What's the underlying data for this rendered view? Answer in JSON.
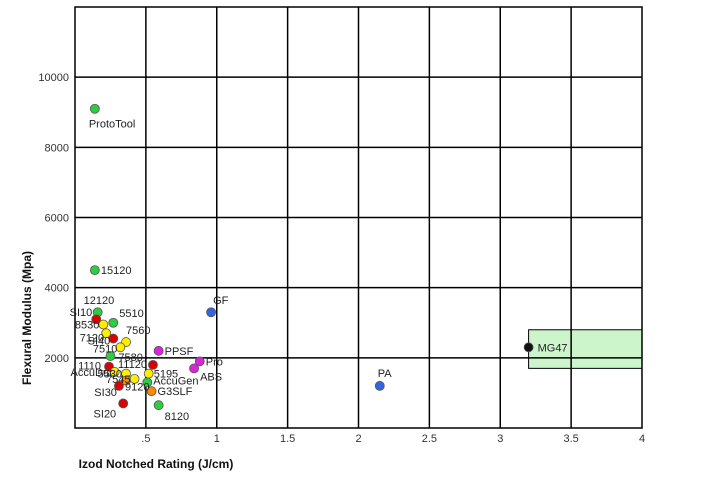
{
  "chart_data": {
    "type": "scatter",
    "title": "",
    "xlabel": "Izod Notched Rating (J/cm)",
    "ylabel": "Flexural Modulus (Mpa)",
    "xlim": [
      0,
      4
    ],
    "ylim": [
      0,
      12000
    ],
    "x_tick_values": [
      0.5,
      1,
      1.5,
      2,
      2.5,
      3,
      3.5,
      4
    ],
    "x_tick_labels": [
      ".5",
      "1",
      "1.5",
      "2",
      "2.5",
      "3",
      "3.5",
      "4"
    ],
    "y_tick_values": [
      2000,
      4000,
      6000,
      8000,
      10000
    ],
    "y_tick_labels": [
      "2000",
      "4000",
      "6000",
      "8000",
      "10000"
    ],
    "grid": true,
    "highlight_region": {
      "x": [
        3.2,
        4.0
      ],
      "y": [
        1700,
        2800
      ],
      "color": "#ccf5cc"
    },
    "points": [
      {
        "label": "ProtoTool",
        "x": 0.14,
        "y": 9100,
        "color": "#2ecc40"
      },
      {
        "label": "15120",
        "x": 0.14,
        "y": 4500,
        "color": "#2ecc40"
      },
      {
        "label": "12120",
        "x": 0.16,
        "y": 3300,
        "color": "#2ecc40"
      },
      {
        "label": "SI10",
        "x": 0.15,
        "y": 3100,
        "color": "#dd0000"
      },
      {
        "label": "8530",
        "x": 0.2,
        "y": 2950,
        "color": "#ffee00"
      },
      {
        "label": "5510",
        "x": 0.27,
        "y": 3000,
        "color": "#2ecc40"
      },
      {
        "label": "7120",
        "x": 0.22,
        "y": 2700,
        "color": "#ffee00"
      },
      {
        "label": "SI40",
        "x": 0.27,
        "y": 2550,
        "color": "#dd0000"
      },
      {
        "label": "7560",
        "x": 0.36,
        "y": 2450,
        "color": "#ffee00"
      },
      {
        "label": "7510",
        "x": 0.32,
        "y": 2300,
        "color": "#ffee00"
      },
      {
        "label": "7580",
        "x": 0.25,
        "y": 2050,
        "color": "#2ecc40"
      },
      {
        "label": "PPSF",
        "x": 0.59,
        "y": 2200,
        "color": "#dd22dd"
      },
      {
        "label": "Pro",
        "x": 0.88,
        "y": 1900,
        "color": "#dd22dd"
      },
      {
        "label": "GF",
        "x": 0.96,
        "y": 3300,
        "color": "#3366dd"
      },
      {
        "label": "11120",
        "x": 0.55,
        "y": 1800,
        "color": "#dd0000"
      },
      {
        "label": "1110",
        "x": 0.24,
        "y": 1750,
        "color": "#dd0000"
      },
      {
        "label": "AccuDur",
        "x": 0.28,
        "y": 1600,
        "color": "#ffee00"
      },
      {
        "label": "5530",
        "x": 0.36,
        "y": 1550,
        "color": "#ffee00"
      },
      {
        "label": "5195",
        "x": 0.52,
        "y": 1550,
        "color": "#ffee00"
      },
      {
        "label": "ABS",
        "x": 0.84,
        "y": 1700,
        "color": "#dd22dd"
      },
      {
        "label": "7545",
        "x": 0.42,
        "y": 1400,
        "color": "#ffee00"
      },
      {
        "label": "AccuGen",
        "x": 0.51,
        "y": 1300,
        "color": "#2ecc40"
      },
      {
        "label": "SI30",
        "x": 0.31,
        "y": 1200,
        "color": "#dd0000"
      },
      {
        "label": "9120",
        "x": 0.36,
        "y": 1350,
        "color": "#ff8800"
      },
      {
        "label": "G3SLF",
        "x": 0.54,
        "y": 1050,
        "color": "#ff8800"
      },
      {
        "label": "SI20",
        "x": 0.34,
        "y": 700,
        "color": "#dd0000"
      },
      {
        "label": "8120",
        "x": 0.59,
        "y": 650,
        "color": "#2ecc40"
      },
      {
        "label": "PA",
        "x": 2.15,
        "y": 1200,
        "color": "#3366dd"
      },
      {
        "label": "MG47",
        "x": 3.2,
        "y": 2300,
        "color": "#111111"
      }
    ],
    "label_placement": {
      "ProtoTool": [
        -6,
        19,
        "start"
      ],
      "15120": [
        6,
        4,
        "start"
      ],
      "12120": [
        -14,
        -8,
        "start"
      ],
      "SI10": [
        -4,
        -3,
        "end"
      ],
      "8530": [
        -4,
        4,
        "end"
      ],
      "5510": [
        6,
        -6,
        "start"
      ],
      "7120": [
        -2,
        8,
        "end"
      ],
      "SI40": [
        -3,
        6,
        "end"
      ],
      "7560": [
        0,
        -8,
        "start"
      ],
      "7510": [
        -3,
        5,
        "end"
      ],
      "7580": [
        8,
        5,
        "start"
      ],
      "PPSF": [
        6,
        4,
        "start"
      ],
      "Pro": [
        6,
        4,
        "start"
      ],
      "GF": [
        2,
        -8,
        "start"
      ],
      "11120": [
        -6,
        3,
        "end"
      ],
      "1110": [
        -8,
        3,
        "end"
      ],
      "AccuDur": [
        -2,
        4,
        "end"
      ],
      "5530": [
        -4,
        4,
        "end"
      ],
      "5195": [
        5,
        4,
        "start"
      ],
      "ABS": [
        6,
        12,
        "start"
      ],
      "7545": [
        -4,
        4,
        "end"
      ],
      "AccuGen": [
        6,
        2,
        "start"
      ],
      "SI30": [
        -2,
        10,
        "end"
      ],
      "9120": [
        -1,
        10,
        "start"
      ],
      "G3SLF": [
        6,
        4,
        "start"
      ],
      "SI20": [
        -7,
        14,
        "end"
      ],
      "8120": [
        6,
        15,
        "start"
      ],
      "PA": [
        -2,
        -9,
        "start"
      ],
      "MG47": [
        9,
        4,
        "start"
      ]
    }
  }
}
